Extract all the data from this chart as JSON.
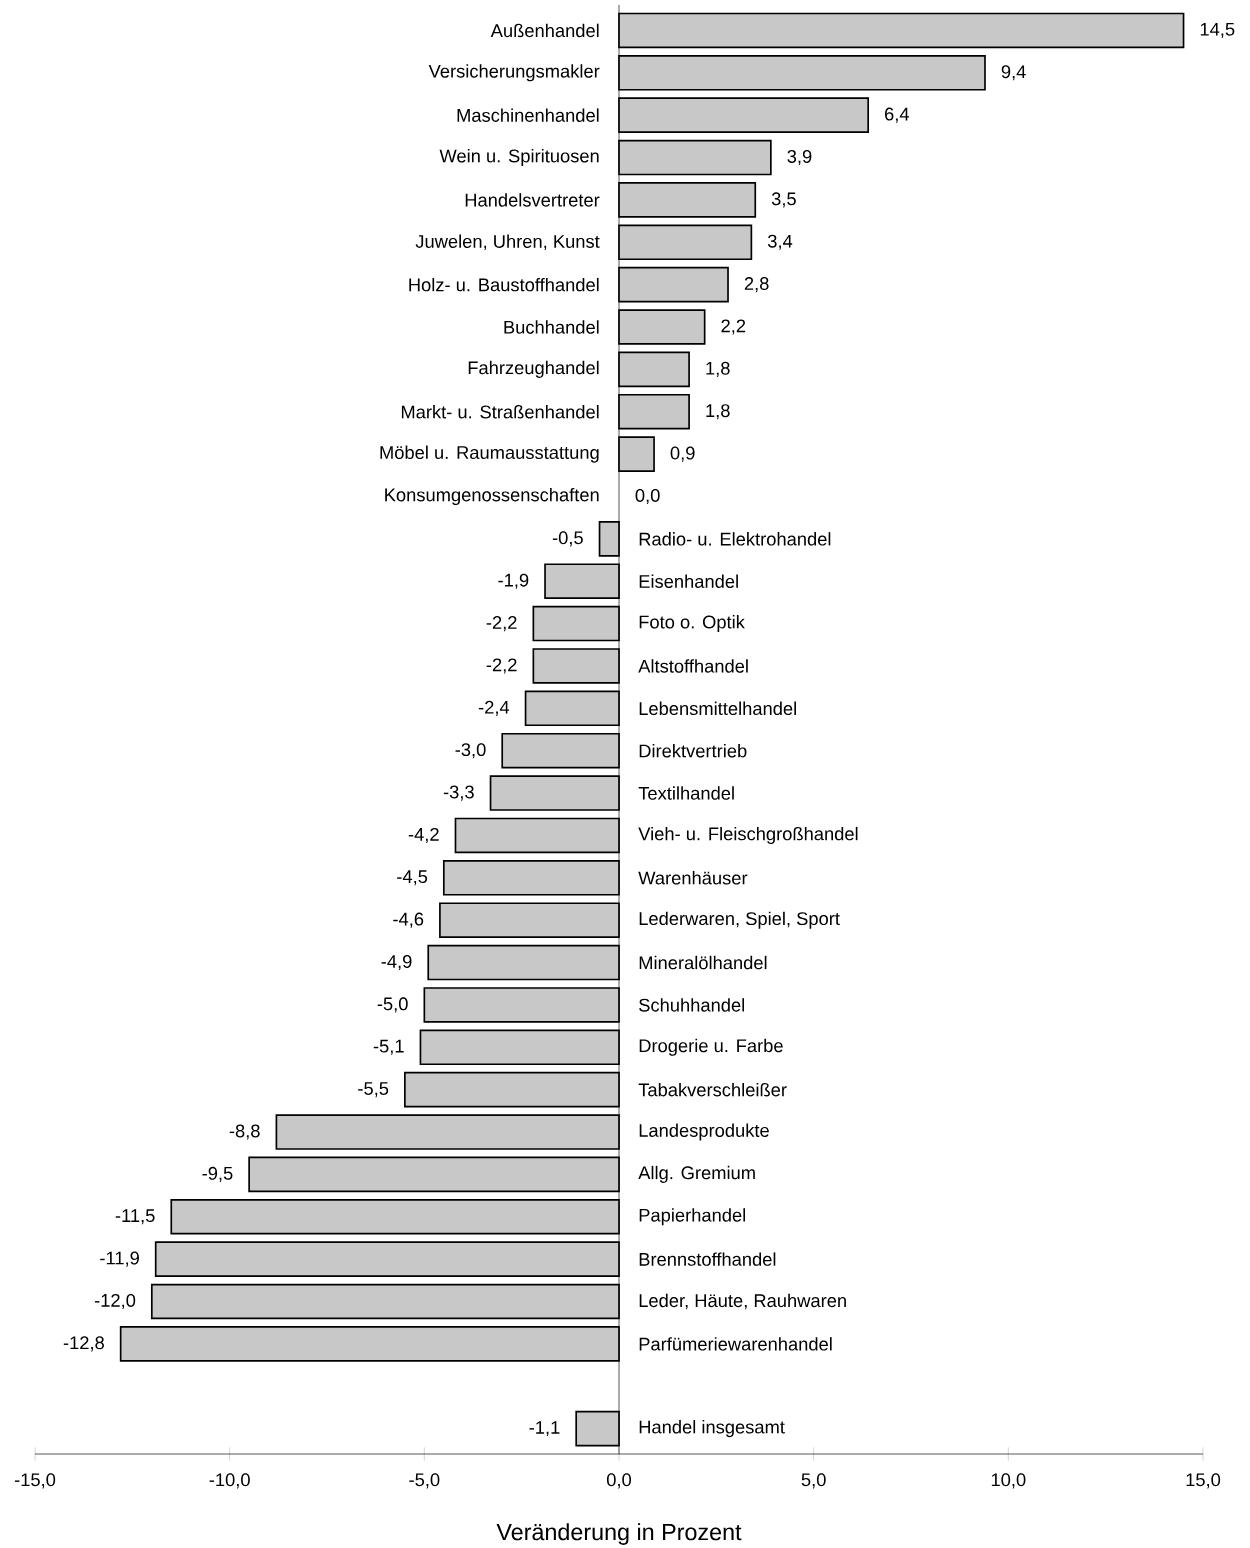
{
  "chart_data": {
    "type": "bar",
    "orientation": "horizontal",
    "xlabel": "Veränderung in Prozent",
    "categories": [
      "Außenhandel",
      "Versicherungsmakler",
      "Maschinenhandel",
      "Wein u. Spirituosen",
      "Handelsvertreter",
      "Juwelen, Uhren, Kunst",
      "Holz- u. Baustoffhandel",
      "Buchhandel",
      "Fahrzeughandel",
      "Markt- u. Straßenhandel",
      "Möbel u. Raumausstattung",
      "Konsumgenossenschaften",
      "Radio- u. Elektrohandel",
      "Eisenhandel",
      "Foto o. Optik",
      "Altstoffhandel",
      "Lebensmittelhandel",
      "Direktvertrieb",
      "Textilhandel",
      "Vieh- u. Fleischgroßhandel",
      "Warenhäuser",
      "Lederwaren, Spiel, Sport",
      "Mineralölhandel",
      "Schuhhandel",
      "Drogerie u. Farbe",
      "Tabakverschleißer",
      "Landesprodukte",
      "Allg. Gremium",
      "Papierhandel",
      "Brennstoffhandel",
      "Leder, Häute, Rauhwaren",
      "Parfümeriewarenhandel",
      null,
      "Handel insgesamt"
    ],
    "values": [
      14.5,
      9.4,
      6.4,
      3.9,
      3.5,
      3.4,
      2.8,
      2.2,
      1.8,
      1.8,
      0.9,
      0.0,
      -0.5,
      -1.9,
      -2.2,
      -2.2,
      -2.4,
      -3.0,
      -3.3,
      -4.2,
      -4.5,
      -4.6,
      -4.9,
      -5.0,
      -5.1,
      -5.5,
      -8.8,
      -9.5,
      -11.5,
      -11.9,
      -12.0,
      -12.8,
      null,
      -1.1
    ],
    "value_labels": [
      "14,5",
      "9,4",
      "6,4",
      "3,9",
      "3,5",
      "3,4",
      "2,8",
      "2,2",
      "1,8",
      "1,8",
      "0,9",
      "0,0",
      "-0,5",
      "-1,9",
      "-2,2",
      "-2,2",
      "-2,4",
      "-3,0",
      "-3,3",
      "-4,2",
      "-4,5",
      "-4,6",
      "-4,9",
      "-5,0",
      "-5,1",
      "-5,5",
      "-8,8",
      "-9,5",
      "-11,5",
      "-11,9",
      "-12,0",
      "-12,8",
      null,
      "-1,1"
    ],
    "color": "#c8c8c8",
    "xlim": [
      -15,
      15
    ],
    "xticks": [
      {
        "value": -15,
        "label": "-15,0"
      },
      {
        "value": -10,
        "label": "-10,0"
      },
      {
        "value": -5,
        "label": "-5,0"
      },
      {
        "value": 0,
        "label": "0,0"
      },
      {
        "value": 5,
        "label": "5,0"
      },
      {
        "value": 10,
        "label": "10,0"
      },
      {
        "value": 15,
        "label": "15,0"
      }
    ]
  }
}
